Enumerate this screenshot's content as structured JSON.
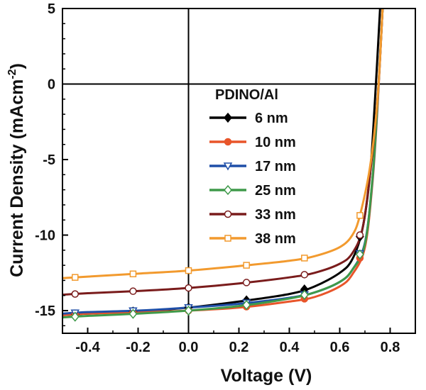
{
  "chart_data": {
    "type": "line",
    "xlabel": "Voltage (V)",
    "ylabel_main": "Current Density (mAcm",
    "ylabel_sup": "-2",
    "ylabel_close": ")",
    "xlim": [
      -0.5,
      0.9
    ],
    "ylim": [
      -16.5,
      5
    ],
    "x_ticks": [
      -0.4,
      -0.2,
      0.0,
      0.2,
      0.4,
      0.6,
      0.8
    ],
    "x_tick_labels": [
      "-0.4",
      "-0.2",
      "0.0",
      "0.2",
      "0.4",
      "0.6",
      "0.8"
    ],
    "y_ticks": [
      5,
      0,
      -5,
      -10,
      -15
    ],
    "y_tick_labels": [
      "5",
      "0",
      "-5",
      "-10",
      "-15"
    ],
    "legend_title": "PDINO/Al",
    "legend_position": "center-right",
    "series": [
      {
        "name": "6 nm",
        "color": "#000000",
        "marker": "diamond-filled",
        "x": [
          -0.5,
          -0.4,
          -0.2,
          0.0,
          0.2,
          0.4,
          0.5,
          0.6,
          0.65,
          0.69,
          0.72,
          0.74,
          0.76
        ],
        "y": [
          -15.3,
          -15.2,
          -15.05,
          -14.8,
          -14.4,
          -13.9,
          -13.4,
          -12.5,
          -11.6,
          -9.6,
          -6.0,
          -1.0,
          5.0
        ]
      },
      {
        "name": "10 nm",
        "color": "#e8552a",
        "marker": "circle-filled",
        "x": [
          -0.5,
          -0.4,
          -0.2,
          0.0,
          0.2,
          0.4,
          0.5,
          0.6,
          0.65,
          0.7,
          0.73,
          0.75,
          0.77
        ],
        "y": [
          -15.3,
          -15.2,
          -15.1,
          -15.0,
          -14.8,
          -14.4,
          -14.1,
          -13.4,
          -12.6,
          -10.8,
          -6.5,
          -1.5,
          5.0
        ]
      },
      {
        "name": "17 nm",
        "color": "#1f4fa8",
        "marker": "triangle-down-open",
        "x": [
          -0.5,
          -0.4,
          -0.2,
          0.0,
          0.2,
          0.4,
          0.5,
          0.6,
          0.65,
          0.7,
          0.73,
          0.75,
          0.77
        ],
        "y": [
          -15.2,
          -15.1,
          -15.0,
          -14.8,
          -14.55,
          -14.15,
          -13.8,
          -13.1,
          -12.3,
          -10.5,
          -6.3,
          -1.3,
          5.0
        ]
      },
      {
        "name": "25 nm",
        "color": "#3f9a4a",
        "marker": "diamond-open",
        "x": [
          -0.5,
          -0.4,
          -0.2,
          0.0,
          0.2,
          0.4,
          0.5,
          0.6,
          0.65,
          0.7,
          0.73,
          0.75,
          0.77
        ],
        "y": [
          -15.45,
          -15.35,
          -15.2,
          -15.0,
          -14.7,
          -14.2,
          -13.8,
          -13.1,
          -12.3,
          -10.6,
          -6.2,
          -1.2,
          5.0
        ]
      },
      {
        "name": "33 nm",
        "color": "#7a1c1c",
        "marker": "circle-open",
        "x": [
          -0.5,
          -0.4,
          -0.2,
          0.0,
          0.2,
          0.4,
          0.5,
          0.6,
          0.65,
          0.69,
          0.72,
          0.75,
          0.77
        ],
        "y": [
          -13.95,
          -13.85,
          -13.7,
          -13.5,
          -13.2,
          -12.8,
          -12.5,
          -11.9,
          -11.2,
          -9.6,
          -6.0,
          -1.0,
          5.0
        ]
      },
      {
        "name": "38 nm",
        "color": "#f29a2e",
        "marker": "square-open",
        "x": [
          -0.5,
          -0.4,
          -0.2,
          0.0,
          0.2,
          0.4,
          0.5,
          0.6,
          0.65,
          0.68,
          0.72,
          0.75,
          0.77
        ],
        "y": [
          -12.85,
          -12.75,
          -12.55,
          -12.35,
          -12.05,
          -11.7,
          -11.4,
          -10.8,
          -10.0,
          -8.7,
          -5.5,
          -1.0,
          5.0
        ]
      }
    ]
  }
}
